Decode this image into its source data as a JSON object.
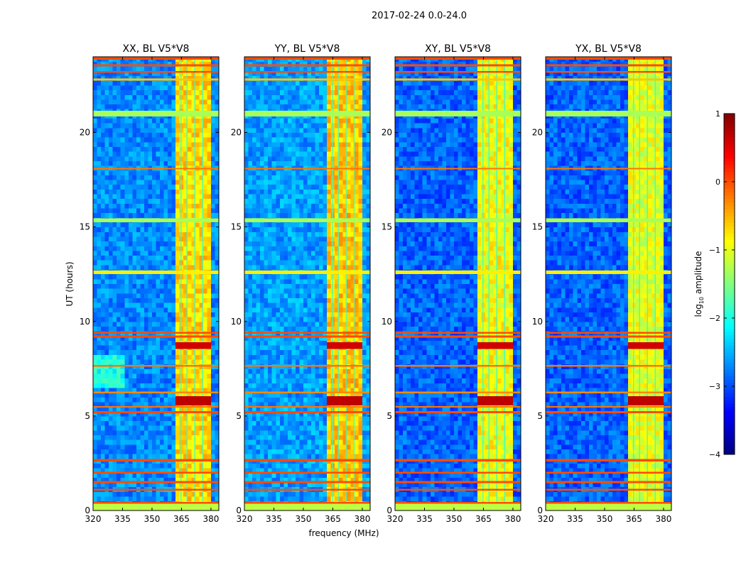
{
  "chart_data": {
    "type": "heatmap",
    "suptitle": "2017-02-24 0.0-24.0",
    "xlabel": "frequency (MHz)",
    "ylabel": "UT (hours)",
    "xlim": [
      320,
      384
    ],
    "ylim": [
      0,
      24
    ],
    "xticks": [
      "320",
      "335",
      "350",
      "365",
      "380"
    ],
    "xtick_values": [
      320,
      335,
      350,
      365,
      380
    ],
    "yticks": [
      "0",
      "5",
      "10",
      "15",
      "20"
    ],
    "ytick_values": [
      0,
      5,
      10,
      15,
      20
    ],
    "colormap": "jet",
    "colorbar": {
      "label_prefix": "log",
      "label_sub": "10",
      "label_suffix": " amplitude",
      "range": [
        -4,
        1
      ],
      "ticks": [
        "1",
        "0",
        "−1",
        "−2",
        "−3",
        "−4"
      ],
      "tick_values": [
        1,
        0,
        -1,
        -2,
        -3,
        -4
      ]
    },
    "panels": [
      {
        "title": "XX, BL V5*V8",
        "band_level": -0.7,
        "quiet_level": -2.7
      },
      {
        "title": "YY, BL V5*V8",
        "band_level": -0.6,
        "quiet_level": -2.6
      },
      {
        "title": "XY, BL V5*V8",
        "band_level": -0.9,
        "quiet_level": -2.9
      },
      {
        "title": "YX, BL V5*V8",
        "band_level": -1.0,
        "quiet_level": -2.9
      }
    ],
    "model": {
      "rfi_band_mhz": [
        362,
        380
      ],
      "vertical_rfi_mhz": [
        364.5,
        367.5,
        371.5,
        375.5
      ],
      "vertical_rfi_level": -1.9,
      "horizontal_rfi": [
        {
          "t0": 0.0,
          "t1": 0.35,
          "level": -1.2
        },
        {
          "t0": 0.35,
          "t1": 0.45,
          "level": 0.0
        },
        {
          "t0": 1.05,
          "t1": 1.15,
          "level": 0.0
        },
        {
          "t0": 1.45,
          "t1": 1.55,
          "level": 0.0
        },
        {
          "t0": 1.95,
          "t1": 2.05,
          "level": 0.0
        },
        {
          "t0": 2.6,
          "t1": 2.72,
          "level": 0.0
        },
        {
          "t0": 5.15,
          "t1": 5.25,
          "level": 0.0
        },
        {
          "t0": 5.45,
          "t1": 5.52,
          "level": -0.2
        },
        {
          "t0": 6.2,
          "t1": 6.3,
          "level": -0.3
        },
        {
          "t0": 7.6,
          "t1": 7.7,
          "level": -0.2
        },
        {
          "t0": 9.15,
          "t1": 9.25,
          "level": 0.0
        },
        {
          "t0": 9.35,
          "t1": 9.45,
          "level": 0.0
        },
        {
          "t0": 12.5,
          "t1": 12.7,
          "level": -0.8
        },
        {
          "t0": 15.25,
          "t1": 15.45,
          "level": -1.3
        },
        {
          "t0": 18.05,
          "t1": 18.12,
          "level": -0.2
        },
        {
          "t0": 20.85,
          "t1": 21.15,
          "level": -1.3
        },
        {
          "t0": 22.75,
          "t1": 22.85,
          "level": -0.6
        },
        {
          "t0": 23.15,
          "t1": 23.25,
          "level": 0.0
        },
        {
          "t0": 23.5,
          "t1": 23.6,
          "level": 0.0
        },
        {
          "t0": 23.85,
          "t1": 24.0,
          "level": 0.0
        }
      ],
      "band_bursts": [
        {
          "t0": 5.55,
          "t1": 6.05,
          "level": 0.7
        },
        {
          "t0": 8.55,
          "t1": 8.9,
          "level": 0.6
        }
      ]
    }
  }
}
